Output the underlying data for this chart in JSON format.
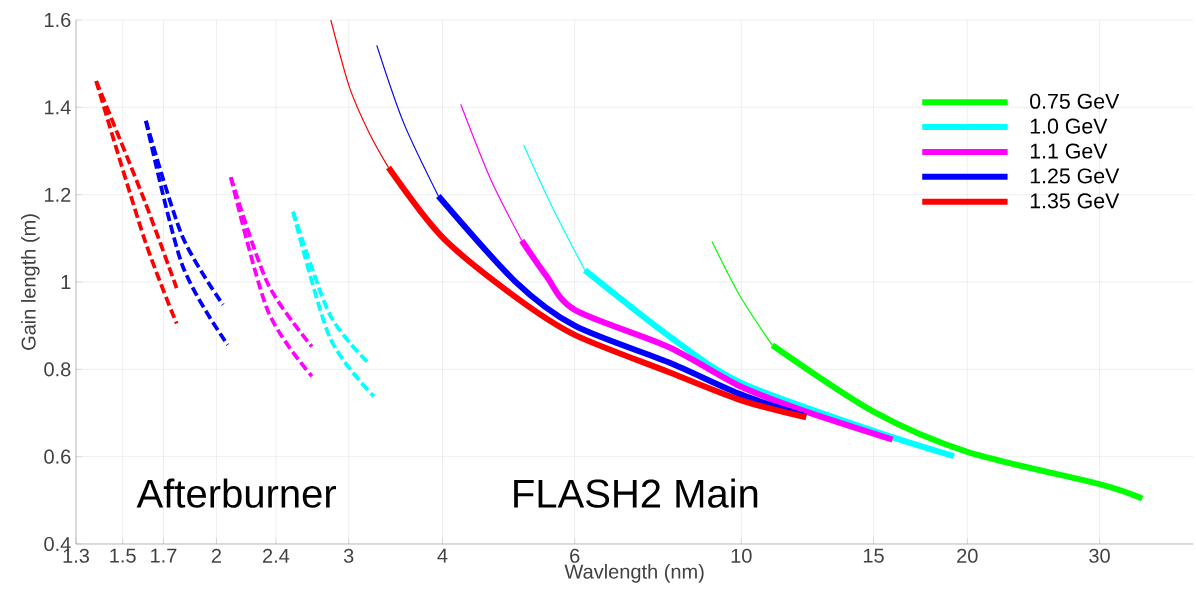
{
  "chart_data": {
    "type": "line",
    "xlabel": "Wavlength (nm)",
    "ylabel": "Gain length (m)",
    "log": "x",
    "xlim": [
      1.3,
      40
    ],
    "ylim": [
      0.4,
      1.6
    ],
    "xticks": [
      1.3,
      1.5,
      1.7,
      2,
      2.4,
      3,
      4,
      6,
      10,
      15,
      20,
      30
    ],
    "yticks": [
      0.4,
      0.6,
      0.8,
      1,
      1.2,
      1.4,
      1.6
    ],
    "grid": true,
    "legend": "top right",
    "annotations": [
      "Afterburner",
      "FLASH2 Main"
    ],
    "series": [
      {
        "name": "0.75 GeV",
        "color": "#00ff00",
        "line_style": "solid",
        "x": [
          11.0,
          15,
          20,
          30,
          34.2
        ],
        "values": [
          0.855,
          0.703,
          0.611,
          0.537,
          0.504
        ]
      },
      {
        "name": "1.0 GeV",
        "color": "#00ffff",
        "line_style": "solid",
        "x": [
          6.19,
          8,
          10,
          15,
          19.2
        ],
        "values": [
          1.027,
          0.877,
          0.769,
          0.659,
          0.601
        ]
      },
      {
        "name": "1.1 GeV",
        "color": "#ff00ff",
        "line_style": "solid",
        "x": [
          5.1,
          5.5,
          6,
          8,
          10,
          12.2,
          15.9
        ],
        "values": [
          1.095,
          1.014,
          0.936,
          0.851,
          0.76,
          0.703,
          0.639
        ]
      },
      {
        "name": "1.25 GeV",
        "color": "#0000ff",
        "line_style": "solid",
        "x": [
          3.95,
          5,
          6,
          8,
          10,
          12.2
        ],
        "values": [
          1.197,
          1.001,
          0.9,
          0.816,
          0.742,
          0.692
        ]
      },
      {
        "name": "1.35 GeV",
        "color": "#ff0000",
        "line_style": "solid",
        "x": [
          3.39,
          4.0,
          5,
          6,
          8,
          10,
          12.2
        ],
        "values": [
          1.262,
          1.102,
          0.966,
          0.879,
          0.794,
          0.729,
          0.69
        ]
      },
      {
        "color": "#00ff00",
        "line_style": "solid",
        "x": [
          9.14,
          9.96,
          11.0
        ],
        "values": [
          1.093,
          0.968,
          0.855
        ]
      },
      {
        "color": "#00ffff",
        "line_style": "solid",
        "x": [
          5.13,
          5.6,
          6.19
        ],
        "values": [
          1.314,
          1.172,
          1.027
        ]
      },
      {
        "color": "#ff00ff",
        "line_style": "solid",
        "x": [
          4.23,
          4.64,
          5.1
        ],
        "values": [
          1.407,
          1.234,
          1.095
        ]
      },
      {
        "color": "#0000ff",
        "line_style": "solid",
        "x": [
          3.27,
          3.55,
          3.95
        ],
        "values": [
          1.542,
          1.365,
          1.197
        ]
      },
      {
        "color": "#ff0000",
        "line_style": "solid",
        "x": [
          2.84,
          3.01,
          3.2,
          3.39
        ],
        "values": [
          1.6,
          1.444,
          1.339,
          1.262
        ]
      },
      {
        "color": "#ff0000",
        "line_style": "dashed",
        "x": [
          1.383,
          1.601,
          1.77
        ],
        "values": [
          1.46,
          1.102,
          0.905
        ]
      },
      {
        "color": "#ff0000",
        "line_style": "dashed",
        "x": [
          1.383,
          1.601,
          1.77
        ],
        "values": [
          1.46,
          1.19,
          0.986
        ]
      },
      {
        "color": "#0000ff",
        "line_style": "dashed",
        "x": [
          1.611,
          1.8,
          2.07
        ],
        "values": [
          1.369,
          1.04,
          0.856
        ]
      },
      {
        "color": "#0000ff",
        "line_style": "dashed",
        "x": [
          1.611,
          1.8,
          2.04
        ],
        "values": [
          1.369,
          1.106,
          0.948
        ]
      },
      {
        "color": "#ff00ff",
        "line_style": "dashed",
        "x": [
          2.09,
          2.34,
          2.68
        ],
        "values": [
          1.24,
          0.935,
          0.784
        ]
      },
      {
        "color": "#ff00ff",
        "line_style": "dashed",
        "x": [
          2.09,
          2.34,
          2.68
        ],
        "values": [
          1.24,
          0.997,
          0.852
        ]
      },
      {
        "color": "#00ffff",
        "line_style": "dashed",
        "x": [
          2.53,
          2.83,
          3.24
        ],
        "values": [
          1.161,
          0.874,
          0.738
        ]
      },
      {
        "color": "#00ffff",
        "line_style": "dashed",
        "x": [
          2.53,
          2.83,
          3.19
        ],
        "values": [
          1.161,
          0.926,
          0.814
        ]
      }
    ]
  }
}
